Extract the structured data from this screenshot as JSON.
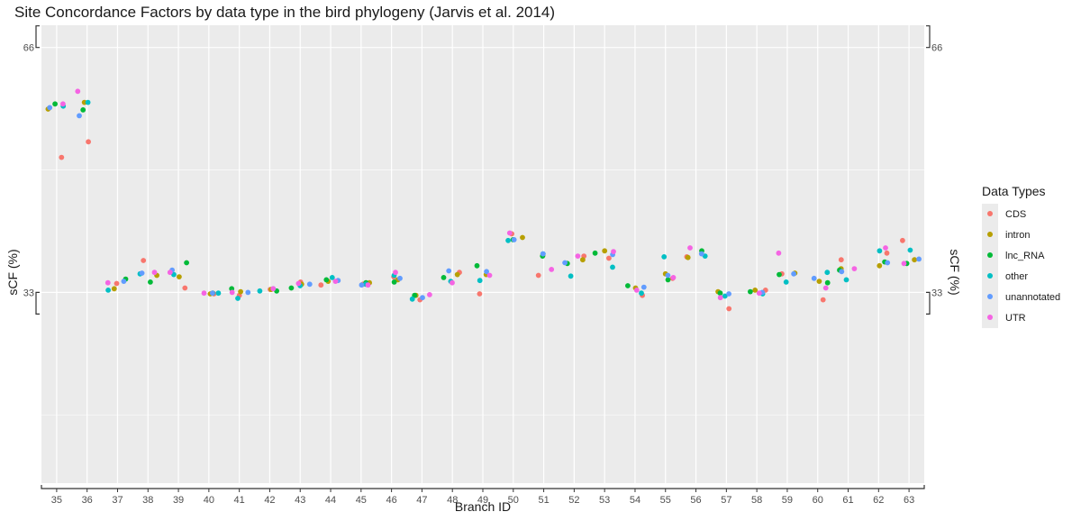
{
  "chart_data": {
    "type": "scatter",
    "title": "Site Concordance Factors by data type in the bird phylogeny (Jarvis et al. 2014)",
    "xlabel": "Branch ID",
    "ylabel": "sCF (%)",
    "ylabel_right": "sCF (%)",
    "y_ticks": [
      33,
      66
    ],
    "ylim": [
      7.3,
      69.0
    ],
    "grid": true,
    "legend_title": "Data Types",
    "legend_position": "right",
    "categories": [
      "35",
      "36",
      "37",
      "38",
      "39",
      "40",
      "41",
      "42",
      "43",
      "44",
      "45",
      "46",
      "47",
      "48",
      "49",
      "50",
      "51",
      "52",
      "53",
      "54",
      "55",
      "56",
      "57",
      "58",
      "59",
      "60",
      "61",
      "62",
      "63"
    ],
    "series": [
      {
        "name": "CDS",
        "color": "#F8766D",
        "values": [
          51.2,
          53.3,
          34.2,
          37.3,
          33.6,
          32.8,
          32.6,
          33.4,
          34.4,
          34.0,
          34.1,
          35.1,
          32.0,
          35.7,
          32.8,
          40.9,
          35.3,
          37.9,
          37.6,
          32.6,
          34.9,
          37.8,
          30.8,
          33.3,
          35.5,
          32.0,
          37.4,
          38.3,
          40.0
        ]
      },
      {
        "name": "intron",
        "color": "#B79F00",
        "values": [
          57.7,
          58.6,
          33.5,
          35.3,
          35.1,
          32.8,
          33.1,
          33.4,
          34.1,
          34.5,
          34.3,
          34.7,
          32.6,
          35.4,
          35.4,
          40.4,
          38.0,
          37.4,
          38.6,
          33.6,
          35.5,
          37.7,
          33.1,
          33.3,
          35.6,
          34.5,
          36.2,
          36.6,
          37.4
        ]
      },
      {
        "name": "lnc_RNA",
        "color": "#00BA38",
        "values": [
          58.4,
          57.6,
          34.8,
          34.4,
          37.0,
          32.9,
          33.5,
          33.2,
          33.6,
          34.7,
          34.3,
          34.4,
          32.6,
          35.0,
          36.6,
          40.1,
          37.9,
          36.9,
          38.3,
          33.9,
          34.7,
          38.6,
          32.9,
          33.1,
          35.4,
          34.3,
          36.0,
          37.1,
          36.9
        ]
      },
      {
        "name": "other",
        "color": "#00BFC4",
        "values": [
          58.1,
          58.6,
          33.3,
          35.5,
          35.4,
          32.9,
          32.2,
          33.2,
          33.9,
          35.0,
          34.1,
          35.3,
          32.1,
          34.5,
          34.6,
          40.0,
          38.2,
          35.2,
          36.4,
          32.9,
          37.8,
          37.9,
          32.5,
          32.8,
          34.4,
          35.7,
          34.7,
          38.6,
          38.7
        ]
      },
      {
        "name": "unannotated",
        "color": "#619CFF",
        "values": [
          57.9,
          56.8,
          34.5,
          35.6,
          36.0,
          32.9,
          33.0,
          33.5,
          34.1,
          34.6,
          34.0,
          34.9,
          32.3,
          35.9,
          35.8,
          40.1,
          38.2,
          37.0,
          38.1,
          33.7,
          35.3,
          38.2,
          32.8,
          33.0,
          35.5,
          34.9,
          35.8,
          37.0,
          37.5
        ]
      },
      {
        "name": "UTR",
        "color": "#F564E3",
        "values": [
          58.4,
          60.1,
          34.3,
          35.7,
          35.7,
          32.9,
          33.0,
          33.5,
          34.2,
          34.5,
          34.0,
          35.7,
          32.7,
          34.3,
          35.3,
          41.0,
          36.1,
          37.9,
          38.5,
          33.3,
          35.0,
          39.0,
          32.3,
          32.9,
          38.3,
          33.6,
          36.2,
          39.0,
          36.9
        ]
      }
    ]
  }
}
